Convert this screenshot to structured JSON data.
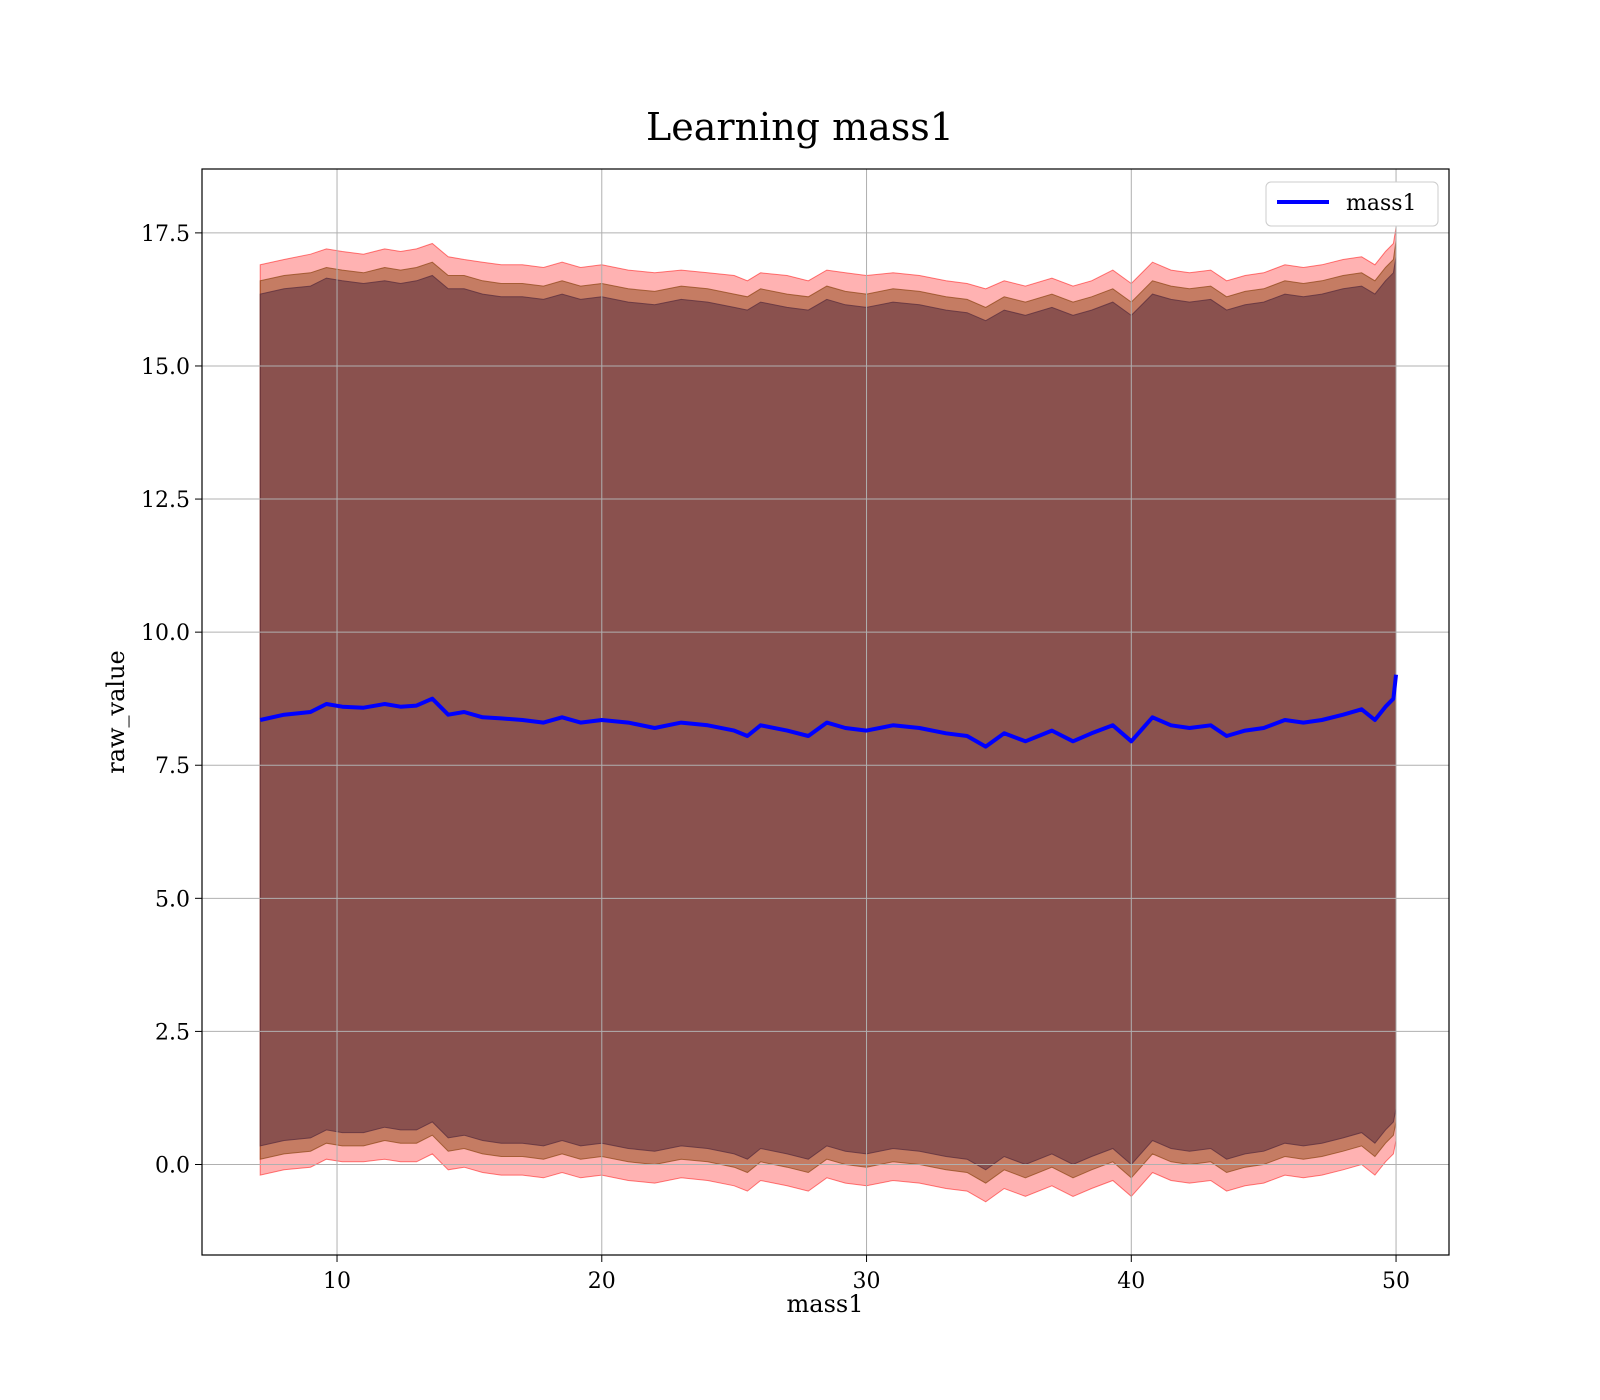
{
  "chart_data": {
    "type": "line",
    "title": "Learning mass1",
    "xlabel": "mass1",
    "ylabel": "raw_value",
    "xlim": [
      4.9,
      52.0
    ],
    "ylim": [
      -1.7,
      18.7
    ],
    "grid": true,
    "legend_position": "top-right",
    "x_ticks": [
      10,
      20,
      30,
      40,
      50
    ],
    "x_tick_labels": [
      "10",
      "20",
      "30",
      "40",
      "50"
    ],
    "y_ticks": [
      0.0,
      2.5,
      5.0,
      7.5,
      10.0,
      12.5,
      15.0,
      17.5
    ],
    "y_tick_labels": [
      "0.0",
      "2.5",
      "5.0",
      "7.5",
      "10.0",
      "12.5",
      "15.0",
      "17.5"
    ],
    "series": [
      {
        "name": "mass1",
        "color": "#0000ff",
        "x": [
          7.1,
          8.0,
          9.0,
          9.6,
          10.2,
          11.0,
          11.8,
          12.4,
          13.0,
          13.6,
          14.2,
          14.8,
          15.5,
          16.2,
          17.0,
          17.8,
          18.5,
          19.2,
          20.0,
          21.0,
          22.0,
          23.0,
          24.0,
          25.0,
          25.5,
          26.0,
          27.0,
          27.8,
          28.5,
          29.2,
          30.0,
          31.0,
          32.0,
          33.0,
          33.8,
          34.5,
          35.2,
          36.0,
          37.0,
          37.8,
          38.5,
          39.3,
          40.0,
          40.8,
          41.5,
          42.2,
          43.0,
          43.6,
          44.3,
          45.0,
          45.8,
          46.5,
          47.2,
          48.0,
          48.7,
          49.2,
          49.6,
          49.9,
          50.0
        ],
        "values": [
          8.35,
          8.45,
          8.5,
          8.65,
          8.6,
          8.58,
          8.65,
          8.6,
          8.62,
          8.75,
          8.45,
          8.5,
          8.4,
          8.38,
          8.35,
          8.3,
          8.4,
          8.3,
          8.35,
          8.3,
          8.2,
          8.3,
          8.25,
          8.15,
          8.05,
          8.25,
          8.15,
          8.05,
          8.3,
          8.2,
          8.15,
          8.25,
          8.2,
          8.1,
          8.05,
          7.85,
          8.1,
          7.95,
          8.15,
          7.95,
          8.1,
          8.25,
          7.95,
          8.4,
          8.25,
          8.2,
          8.25,
          8.05,
          8.15,
          8.2,
          8.35,
          8.3,
          8.35,
          8.45,
          8.55,
          8.35,
          8.6,
          8.75,
          9.2
        ]
      }
    ],
    "bands": [
      {
        "color": "#ff0000",
        "opacity": 0.3,
        "x": [
          7.1,
          8.0,
          9.0,
          9.6,
          10.2,
          11.0,
          11.8,
          12.4,
          13.0,
          13.6,
          14.2,
          14.8,
          15.5,
          16.2,
          17.0,
          17.8,
          18.5,
          19.2,
          20.0,
          21.0,
          22.0,
          23.0,
          24.0,
          25.0,
          25.5,
          26.0,
          27.0,
          27.8,
          28.5,
          29.2,
          30.0,
          31.0,
          32.0,
          33.0,
          33.8,
          34.5,
          35.2,
          36.0,
          37.0,
          37.8,
          38.5,
          39.3,
          40.0,
          40.8,
          41.5,
          42.2,
          43.0,
          43.6,
          44.3,
          45.0,
          45.8,
          46.5,
          47.2,
          48.0,
          48.7,
          49.2,
          49.6,
          49.9,
          50.0
        ],
        "upper": [
          16.9,
          17.0,
          17.1,
          17.2,
          17.15,
          17.1,
          17.2,
          17.15,
          17.2,
          17.3,
          17.05,
          17.0,
          16.95,
          16.9,
          16.9,
          16.85,
          16.95,
          16.85,
          16.9,
          16.8,
          16.75,
          16.8,
          16.75,
          16.7,
          16.6,
          16.75,
          16.7,
          16.6,
          16.8,
          16.75,
          16.7,
          16.75,
          16.7,
          16.6,
          16.55,
          16.45,
          16.6,
          16.5,
          16.65,
          16.5,
          16.6,
          16.8,
          16.55,
          16.95,
          16.8,
          16.75,
          16.8,
          16.6,
          16.7,
          16.75,
          16.9,
          16.85,
          16.9,
          17.0,
          17.05,
          16.9,
          17.15,
          17.3,
          17.6
        ],
        "lower": [
          -0.2,
          -0.1,
          -0.05,
          0.1,
          0.05,
          0.05,
          0.1,
          0.05,
          0.05,
          0.2,
          -0.1,
          -0.05,
          -0.15,
          -0.2,
          -0.2,
          -0.25,
          -0.15,
          -0.25,
          -0.2,
          -0.3,
          -0.35,
          -0.25,
          -0.3,
          -0.4,
          -0.5,
          -0.3,
          -0.4,
          -0.5,
          -0.25,
          -0.35,
          -0.4,
          -0.3,
          -0.35,
          -0.45,
          -0.5,
          -0.7,
          -0.45,
          -0.6,
          -0.4,
          -0.6,
          -0.45,
          -0.3,
          -0.6,
          -0.15,
          -0.3,
          -0.35,
          -0.3,
          -0.5,
          -0.4,
          -0.35,
          -0.2,
          -0.25,
          -0.2,
          -0.1,
          0.0,
          -0.2,
          0.05,
          0.2,
          0.45
        ]
      },
      {
        "color": "#8b4513",
        "opacity": 0.5,
        "x": [
          7.1,
          8.0,
          9.0,
          9.6,
          10.2,
          11.0,
          11.8,
          12.4,
          13.0,
          13.6,
          14.2,
          14.8,
          15.5,
          16.2,
          17.0,
          17.8,
          18.5,
          19.2,
          20.0,
          21.0,
          22.0,
          23.0,
          24.0,
          25.0,
          25.5,
          26.0,
          27.0,
          27.8,
          28.5,
          29.2,
          30.0,
          31.0,
          32.0,
          33.0,
          33.8,
          34.5,
          35.2,
          36.0,
          37.0,
          37.8,
          38.5,
          39.3,
          40.0,
          40.8,
          41.5,
          42.2,
          43.0,
          43.6,
          44.3,
          45.0,
          45.8,
          46.5,
          47.2,
          48.0,
          48.7,
          49.2,
          49.6,
          49.9,
          50.0
        ],
        "upper": [
          16.6,
          16.7,
          16.75,
          16.85,
          16.8,
          16.75,
          16.85,
          16.8,
          16.85,
          16.95,
          16.7,
          16.7,
          16.6,
          16.55,
          16.55,
          16.5,
          16.6,
          16.5,
          16.55,
          16.45,
          16.4,
          16.5,
          16.45,
          16.35,
          16.3,
          16.45,
          16.35,
          16.3,
          16.5,
          16.4,
          16.35,
          16.45,
          16.4,
          16.3,
          16.25,
          16.1,
          16.3,
          16.2,
          16.35,
          16.2,
          16.3,
          16.45,
          16.2,
          16.6,
          16.5,
          16.45,
          16.5,
          16.3,
          16.4,
          16.45,
          16.6,
          16.55,
          16.6,
          16.7,
          16.75,
          16.6,
          16.85,
          17.0,
          17.35
        ],
        "lower": [
          0.1,
          0.2,
          0.25,
          0.4,
          0.35,
          0.35,
          0.45,
          0.4,
          0.4,
          0.55,
          0.25,
          0.3,
          0.2,
          0.15,
          0.15,
          0.1,
          0.2,
          0.1,
          0.15,
          0.05,
          0.0,
          0.1,
          0.05,
          -0.05,
          -0.15,
          0.05,
          -0.05,
          -0.15,
          0.1,
          0.0,
          -0.05,
          0.05,
          0.0,
          -0.1,
          -0.15,
          -0.35,
          -0.1,
          -0.25,
          -0.05,
          -0.25,
          -0.1,
          0.05,
          -0.25,
          0.2,
          0.05,
          0.0,
          0.05,
          -0.15,
          -0.05,
          0.0,
          0.15,
          0.1,
          0.15,
          0.25,
          0.35,
          0.15,
          0.4,
          0.55,
          0.8
        ]
      },
      {
        "color": "#5a2e3e",
        "opacity": 0.55,
        "x": [
          7.1,
          8.0,
          9.0,
          9.6,
          10.2,
          11.0,
          11.8,
          12.4,
          13.0,
          13.6,
          14.2,
          14.8,
          15.5,
          16.2,
          17.0,
          17.8,
          18.5,
          19.2,
          20.0,
          21.0,
          22.0,
          23.0,
          24.0,
          25.0,
          25.5,
          26.0,
          27.0,
          27.8,
          28.5,
          29.2,
          30.0,
          31.0,
          32.0,
          33.0,
          33.8,
          34.5,
          35.2,
          36.0,
          37.0,
          37.8,
          38.5,
          39.3,
          40.0,
          40.8,
          41.5,
          42.2,
          43.0,
          43.6,
          44.3,
          45.0,
          45.8,
          46.5,
          47.2,
          48.0,
          48.7,
          49.2,
          49.6,
          49.9,
          50.0
        ],
        "upper": [
          16.35,
          16.45,
          16.5,
          16.65,
          16.6,
          16.55,
          16.6,
          16.55,
          16.6,
          16.7,
          16.45,
          16.45,
          16.35,
          16.3,
          16.3,
          16.25,
          16.35,
          16.25,
          16.3,
          16.2,
          16.15,
          16.25,
          16.2,
          16.1,
          16.05,
          16.2,
          16.1,
          16.05,
          16.25,
          16.15,
          16.1,
          16.2,
          16.15,
          16.05,
          16.0,
          15.85,
          16.05,
          15.95,
          16.1,
          15.95,
          16.05,
          16.2,
          15.95,
          16.35,
          16.25,
          16.2,
          16.25,
          16.05,
          16.15,
          16.2,
          16.35,
          16.3,
          16.35,
          16.45,
          16.5,
          16.35,
          16.6,
          16.75,
          17.05
        ],
        "lower": [
          0.35,
          0.45,
          0.5,
          0.65,
          0.6,
          0.6,
          0.7,
          0.65,
          0.65,
          0.8,
          0.5,
          0.55,
          0.45,
          0.4,
          0.4,
          0.35,
          0.45,
          0.35,
          0.4,
          0.3,
          0.25,
          0.35,
          0.3,
          0.2,
          0.1,
          0.3,
          0.2,
          0.1,
          0.35,
          0.25,
          0.2,
          0.3,
          0.25,
          0.15,
          0.1,
          -0.1,
          0.15,
          0.0,
          0.2,
          0.0,
          0.15,
          0.3,
          0.0,
          0.45,
          0.3,
          0.25,
          0.3,
          0.1,
          0.2,
          0.25,
          0.4,
          0.35,
          0.4,
          0.5,
          0.6,
          0.4,
          0.65,
          0.8,
          1.05
        ]
      }
    ]
  }
}
